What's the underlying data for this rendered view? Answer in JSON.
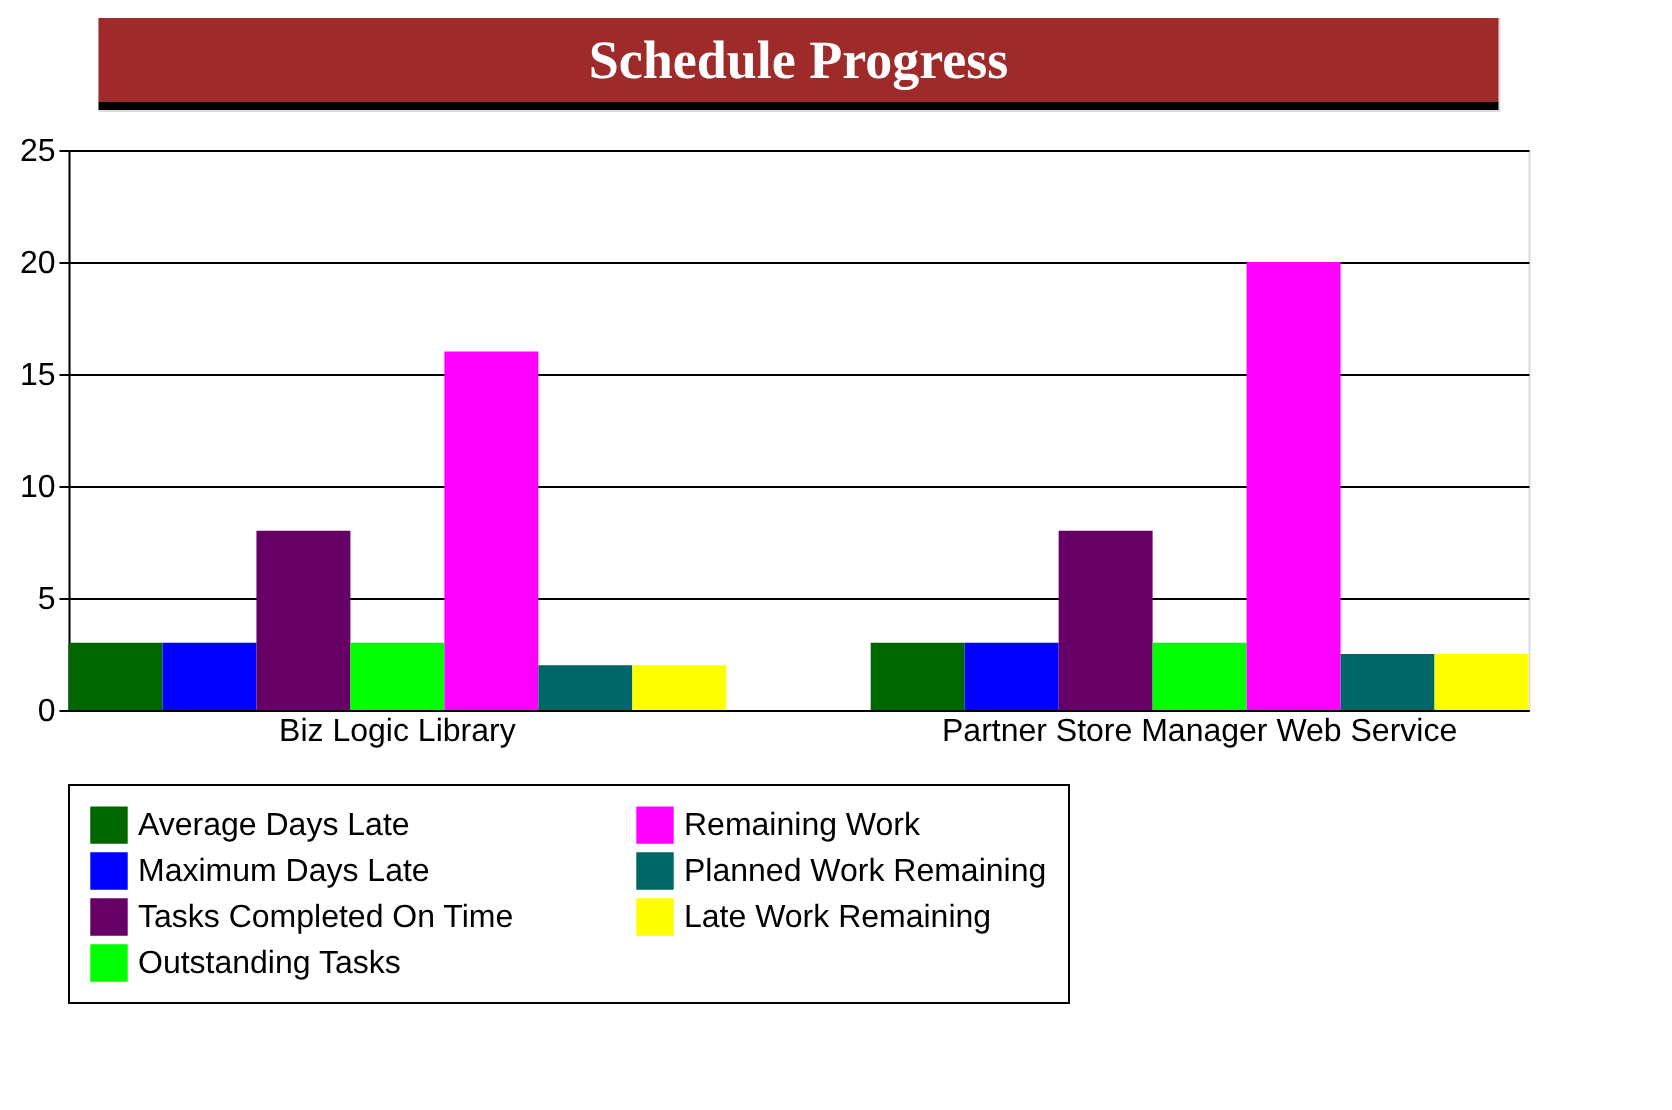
{
  "chart_data": {
    "type": "bar",
    "title": "Schedule Progress",
    "categories": [
      "Biz Logic Library",
      "Partner Store Manager Web Service"
    ],
    "series": [
      {
        "name": "Average Days Late",
        "color": "#006600",
        "values": [
          3,
          3
        ]
      },
      {
        "name": "Maximum Days Late",
        "color": "#0000ff",
        "values": [
          3,
          3
        ]
      },
      {
        "name": "Tasks Completed On Time",
        "color": "#660066",
        "values": [
          8,
          8
        ]
      },
      {
        "name": "Outstanding Tasks",
        "color": "#00ff00",
        "values": [
          3,
          3
        ]
      },
      {
        "name": "Remaining Work",
        "color": "#ff00ff",
        "values": [
          16,
          20
        ]
      },
      {
        "name": "Planned Work Remaining",
        "color": "#006666",
        "values": [
          2,
          2.5
        ]
      },
      {
        "name": "Late Work Remaining",
        "color": "#ffff00",
        "values": [
          2,
          2.5
        ]
      }
    ],
    "ylim": [
      0,
      25
    ],
    "yticks": [
      0,
      5,
      10,
      15,
      20,
      25
    ],
    "grid": "y",
    "legend": "bottom"
  }
}
